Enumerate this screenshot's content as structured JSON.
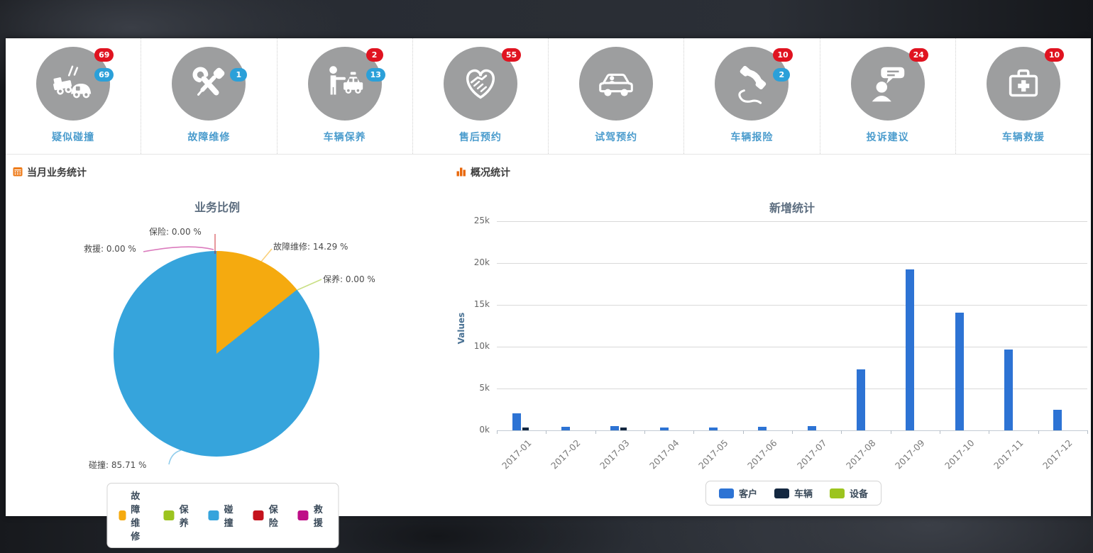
{
  "quick_actions": [
    {
      "label": "疑似碰撞",
      "icon": "car-collision-icon",
      "badges": [
        {
          "value": "69",
          "color": "red"
        },
        {
          "value": "69",
          "color": "blue"
        }
      ]
    },
    {
      "label": "故障维修",
      "icon": "repair-tools-icon",
      "badges": [
        {
          "value": "1",
          "color": "blue"
        }
      ]
    },
    {
      "label": "车辆保养",
      "icon": "person-taxi-icon",
      "badges": [
        {
          "value": "2",
          "color": "red"
        },
        {
          "value": "13",
          "color": "blue"
        }
      ]
    },
    {
      "label": "售后预约",
      "icon": "handshake-icon",
      "badges": [
        {
          "value": "55",
          "color": "red"
        }
      ]
    },
    {
      "label": "试驾预约",
      "icon": "car-side-icon",
      "badges": []
    },
    {
      "label": "车辆报险",
      "icon": "phone-icon",
      "badges": [
        {
          "value": "10",
          "color": "red"
        },
        {
          "value": "2",
          "color": "blue"
        }
      ]
    },
    {
      "label": "投诉建议",
      "icon": "person-chat-icon",
      "badges": [
        {
          "value": "24",
          "color": "red"
        }
      ]
    },
    {
      "label": "车辆救援",
      "icon": "first-aid-kit-icon",
      "badges": [
        {
          "value": "10",
          "color": "red"
        }
      ]
    }
  ],
  "left_panel": {
    "header": "当月业务统计"
  },
  "right_panel": {
    "header": "概况统计"
  },
  "chart_data": [
    {
      "type": "pie",
      "title": "业务比例",
      "slices": [
        {
          "label": "故障维修",
          "value": 14.29,
          "color": "#F5AA0F",
          "callout": "故障维修: 14.29 %"
        },
        {
          "label": "保养",
          "value": 0.0,
          "color": "#9CC41F",
          "callout": "保养: 0.00 %"
        },
        {
          "label": "碰撞",
          "value": 85.71,
          "color": "#36A4DC",
          "callout": "碰撞: 85.71 %"
        },
        {
          "label": "保险",
          "value": 0.0,
          "color": "#C5121C",
          "callout": "保险: 0.00 %"
        },
        {
          "label": "救援",
          "value": 0.0,
          "color": "#BE0E87",
          "callout": "救援: 0.00 %"
        }
      ],
      "legend": [
        "故障维修",
        "保养",
        "碰撞",
        "保险",
        "救援"
      ],
      "legend_position": "bottom"
    },
    {
      "type": "bar",
      "title": "新增统计",
      "xlabel": "",
      "ylabel": "Values",
      "ylim": [
        0,
        25000
      ],
      "yticks": [
        "0k",
        "5k",
        "10k",
        "15k",
        "20k",
        "25k"
      ],
      "categories": [
        "2017-01",
        "2017-02",
        "2017-03",
        "2017-04",
        "2017-05",
        "2017-06",
        "2017-07",
        "2017-08",
        "2017-09",
        "2017-10",
        "2017-11",
        "2017-12"
      ],
      "series": [
        {
          "name": "客户",
          "color": "#2D73D4",
          "values": [
            2000,
            400,
            500,
            350,
            350,
            400,
            500,
            7300,
            19200,
            14100,
            9700,
            2500
          ]
        },
        {
          "name": "车辆",
          "color": "#132740",
          "values": [
            300,
            0,
            300,
            0,
            0,
            0,
            0,
            0,
            0,
            0,
            0,
            0
          ]
        },
        {
          "name": "设备",
          "color": "#9CC41F",
          "values": [
            0,
            0,
            0,
            0,
            0,
            0,
            0,
            0,
            0,
            0,
            0,
            0
          ]
        }
      ],
      "legend_position": "bottom",
      "grid": true
    }
  ]
}
